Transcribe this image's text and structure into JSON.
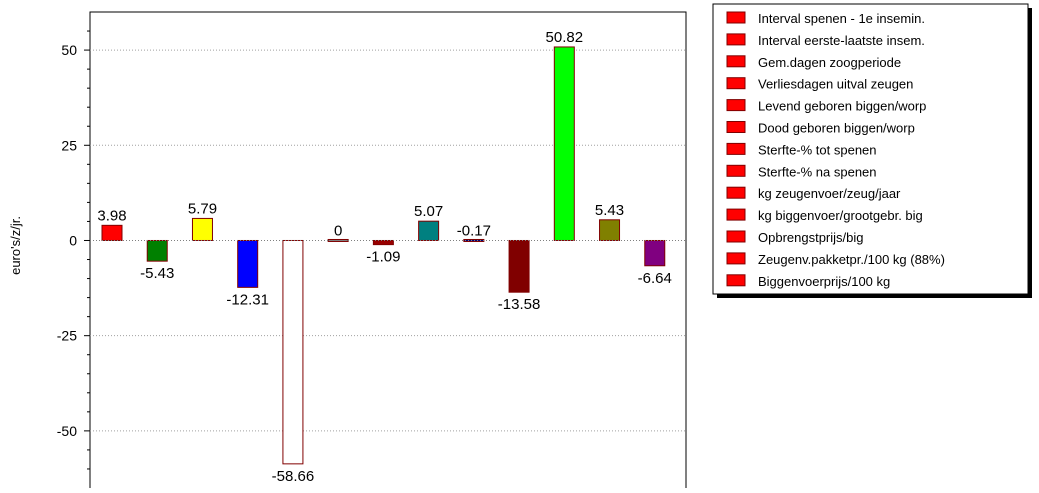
{
  "chart_data": {
    "type": "bar",
    "ylabel": "euro's/z/jr.",
    "ylim": [
      -65,
      60
    ],
    "yticks": [
      50,
      25,
      0,
      -25,
      -50
    ],
    "grid": true,
    "legend_position": "right",
    "categories": [
      "Interval spenen - 1e insemin.",
      "Interval eerste-laatste insem.",
      "Gem.dagen zoogperiode",
      "Verliesdagen uitval zeugen",
      "Levend geboren biggen/worp",
      "Dood geboren biggen/worp",
      "Sterfte-% tot spenen",
      "Sterfte-% na spenen",
      "kg zeugenvoer/zeug/jaar",
      "kg biggenvoer/grootgebr. big",
      "Opbrengstprijs/big",
      "Zeugenv.pakketpr./100 kg (88%)",
      "Biggenvoerprijs/100 kg"
    ],
    "values": [
      3.98,
      -5.43,
      5.79,
      -12.31,
      -58.66,
      0,
      -1.09,
      5.07,
      -0.17,
      -13.58,
      50.82,
      5.43,
      -6.64
    ],
    "value_labels": [
      "3.98",
      "-5.43",
      "5.79",
      "-12.31",
      "-58.66",
      "0",
      "-1.09",
      "5.07",
      "-0.17",
      "-13.58",
      "50.82",
      "5.43",
      "-6.64"
    ],
    "colors": [
      "#ff0000",
      "#008000",
      "#ffff00",
      "#0000ff",
      "#ffffff",
      "#808080",
      "#990000",
      "#008080",
      "#000080",
      "#800000",
      "#00ff00",
      "#808000",
      "#800080"
    ],
    "legend_color": "#ff0000"
  }
}
